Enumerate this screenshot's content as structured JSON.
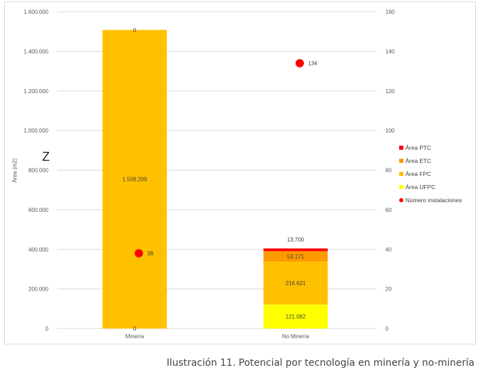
{
  "chart_data": {
    "type": "bar",
    "stacked": true,
    "categories": [
      "Minería",
      "No Minería"
    ],
    "series": [
      {
        "name": "Área UFPC",
        "values": [
          0,
          121082
        ],
        "color": "#ffff00",
        "labels": [
          "0",
          "121.082"
        ]
      },
      {
        "name": "Área FPC",
        "values": [
          1508209,
          216621
        ],
        "color": "#ffc000",
        "labels": [
          "1.508.209",
          "216.621"
        ]
      },
      {
        "name": "Área ETC",
        "values": [
          0,
          53171
        ],
        "color": "#ff9900",
        "labels": [
          "",
          "53.171"
        ]
      },
      {
        "name": "Área PTC",
        "values": [
          0,
          13700
        ],
        "color": "#ff0000",
        "labels": [
          "0",
          "13.700"
        ]
      }
    ],
    "points": {
      "name": "Número instalaciones",
      "values": [
        38,
        134
      ],
      "labels": [
        "38",
        "134"
      ],
      "color": "#ff0000"
    },
    "ylabel": "Área (m2)",
    "ylim": [
      0,
      1600000
    ],
    "y_ticks": [
      "0",
      "200.000",
      "400.000",
      "600.000",
      "800.000",
      "1.000.000",
      "1.200.000",
      "1.400.000",
      "1.600.000"
    ],
    "y2lim": [
      0,
      160
    ],
    "y2_ticks": [
      "0",
      "20",
      "40",
      "60",
      "80",
      "100",
      "120",
      "140",
      "160"
    ],
    "grid": true,
    "legend_position": "right"
  },
  "stray_text": "Z",
  "caption": "Ilustración 11. Potencial por tecnología en minería y no-minería"
}
